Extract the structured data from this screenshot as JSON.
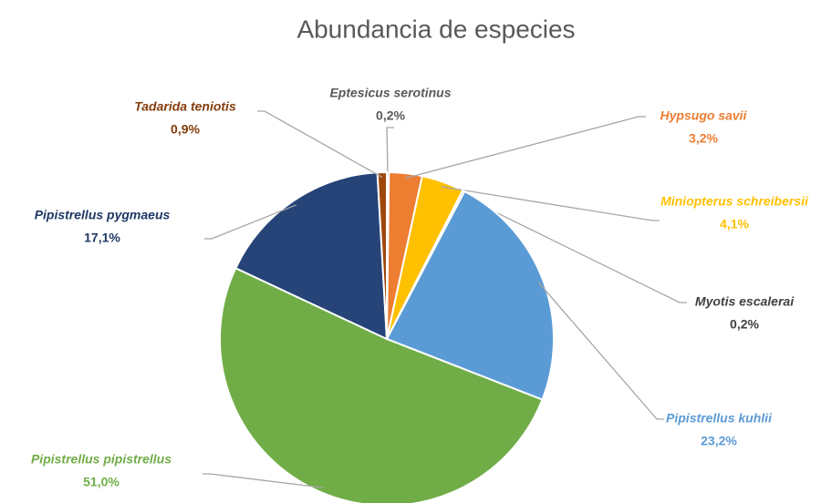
{
  "chart_data": {
    "type": "pie",
    "title": "Abundancia de especies",
    "categories": [
      "Eptesicus serotinus",
      "Hypsugo savii",
      "Miniopterus schreibersii",
      "Myotis escalerai",
      "Pipistrellus kuhlii",
      "Pipistrellus pipistrellus",
      "Pipistrellus pygmaeus",
      "Tadarida teniotis"
    ],
    "values": [
      0.2,
      3.2,
      4.1,
      0.2,
      23.2,
      51.0,
      17.1,
      0.9
    ],
    "value_labels": [
      "0,2%",
      "3,2%",
      "4,1%",
      "0,2%",
      "23,2%",
      "51,0%",
      "17,1%",
      "0,9%"
    ],
    "colors": [
      "#a5a5a5",
      "#ed7d31",
      "#ffc000",
      "#7f7f7f",
      "#5b9bd5",
      "#70ad47",
      "#264478",
      "#9e480e"
    ],
    "label_colors": [
      "#595959",
      "#ed7d31",
      "#ffc000",
      "#404040",
      "#5b9bd5",
      "#70ad47",
      "#1f3864",
      "#843c0c"
    ]
  }
}
